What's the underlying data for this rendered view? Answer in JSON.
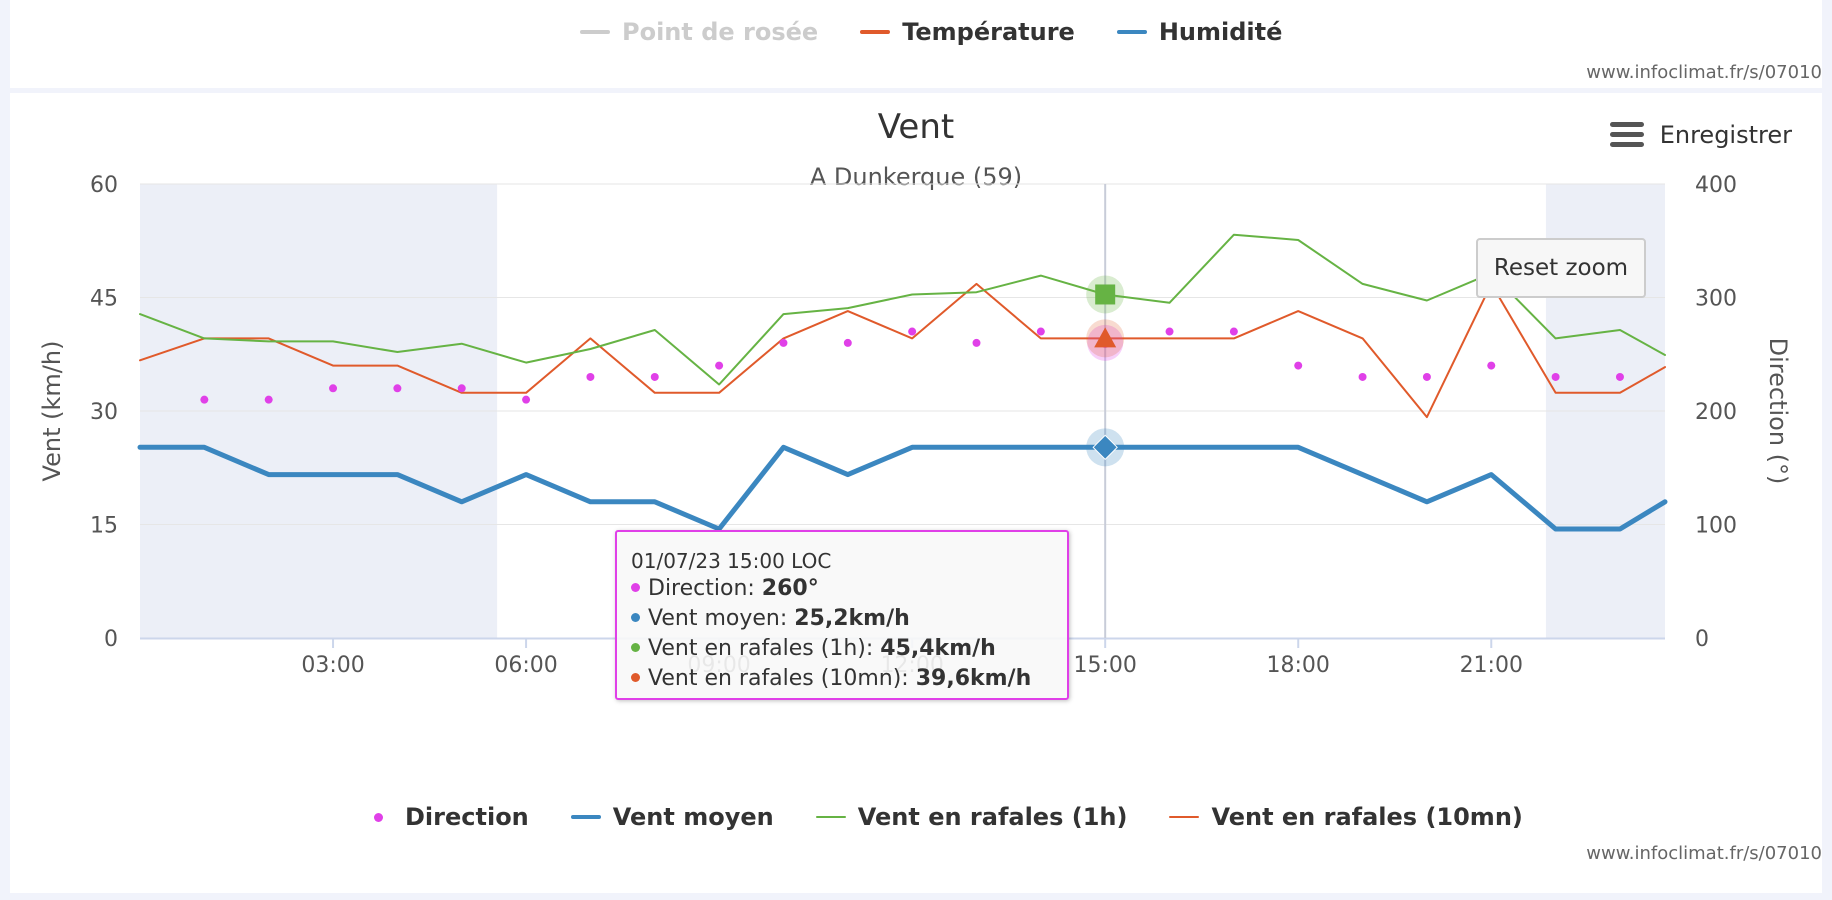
{
  "top_legend": {
    "items": [
      {
        "label": "Point de rosée",
        "color": "#cccccc",
        "enabled": false
      },
      {
        "label": "Température",
        "color": "#e05a2b",
        "enabled": true
      },
      {
        "label": "Humidité",
        "color": "#3b87c0",
        "enabled": true
      }
    ],
    "credit": "www.infoclimat.fr/s/07010"
  },
  "export": {
    "label": "Enregistrer",
    "icon": "hamburger-menu-icon"
  },
  "reset_zoom_label": "Reset zoom",
  "footer_credit": "www.infoclimat.fr/s/07010",
  "tooltip": {
    "header": "01/07/23 15:00 LOC",
    "rows": [
      {
        "label": "Direction: ",
        "value": "260°",
        "color": "#e040e8"
      },
      {
        "label": "Vent moyen: ",
        "value": "25,2km/h",
        "color": "#3b87c0"
      },
      {
        "label": "Vent en rafales (1h): ",
        "value": "45,4km/h",
        "color": "#66b344"
      },
      {
        "label": "Vent en rafales (10mn): ",
        "value": "39,6km/h",
        "color": "#e05a2b"
      }
    ]
  },
  "chart_data": {
    "type": "line",
    "title": "Vent",
    "subtitle": "A Dunkerque (59)",
    "ylabel": "Vent (km/h)",
    "ylabel_right": "Direction (°)",
    "ylim": [
      0,
      60
    ],
    "y_ticks": [
      "0",
      "15",
      "30",
      "45",
      "60"
    ],
    "ylim_right": [
      0,
      400
    ],
    "y_ticks_right": [
      "0",
      "100",
      "200",
      "300",
      "400"
    ],
    "x_unit": "hour",
    "xlim": [
      0,
      23.7
    ],
    "x_ticks": [
      {
        "value": 3,
        "label": "03:00"
      },
      {
        "value": 6,
        "label": "06:00"
      },
      {
        "value": 9,
        "label": "09:00"
      },
      {
        "value": 12,
        "label": "12:00"
      },
      {
        "value": 15,
        "label": "15:00"
      },
      {
        "value": 18,
        "label": "18:00"
      },
      {
        "value": 21,
        "label": "21:00"
      }
    ],
    "night_bands": [
      [
        0,
        5.55
      ],
      [
        21.85,
        23.7
      ]
    ],
    "crosshair_x": 15,
    "grid": true,
    "legend_position": "bottom",
    "series": [
      {
        "name": "Direction",
        "kind": "scatter",
        "axis": "right",
        "color": "#e040e8",
        "x": [
          1,
          2,
          3,
          4,
          5,
          6,
          7,
          8,
          9,
          10,
          11,
          12,
          13,
          14,
          15,
          16,
          17,
          18,
          19,
          20,
          21,
          22,
          23
        ],
        "values": [
          210,
          210,
          220,
          220,
          220,
          210,
          230,
          230,
          240,
          260,
          260,
          270,
          260,
          270,
          260,
          270,
          270,
          240,
          230,
          230,
          240,
          230,
          230
        ]
      },
      {
        "name": "Vent moyen",
        "kind": "line",
        "axis": "left",
        "color": "#3b87c0",
        "width": 5,
        "x": [
          0,
          1,
          2,
          3,
          4,
          5,
          6,
          7,
          8,
          9,
          10,
          11,
          12,
          13,
          14,
          15,
          16,
          17,
          18,
          19,
          20,
          21,
          22,
          23,
          23.7
        ],
        "values": [
          25.2,
          25.2,
          21.6,
          21.6,
          21.6,
          18,
          21.6,
          18,
          18,
          14.4,
          25.2,
          21.6,
          25.2,
          25.2,
          25.2,
          25.2,
          25.2,
          25.2,
          25.2,
          21.6,
          18,
          21.6,
          14.4,
          14.4,
          18
        ]
      },
      {
        "name": "Vent en rafales (1h)",
        "kind": "line",
        "axis": "left",
        "color": "#66b344",
        "width": 2,
        "x": [
          0,
          1,
          2,
          3,
          4,
          5,
          6,
          7,
          8,
          9,
          10,
          11,
          12,
          13,
          14,
          15,
          16,
          17,
          18,
          19,
          20,
          21,
          22,
          23,
          23.7
        ],
        "values": [
          42.8,
          39.6,
          39.2,
          39.2,
          37.8,
          38.9,
          36.4,
          38.2,
          40.7,
          33.5,
          42.8,
          43.6,
          45.4,
          45.7,
          47.9,
          45.4,
          44.3,
          53.3,
          52.6,
          46.8,
          44.6,
          48.2,
          39.6,
          40.7,
          37.4
        ]
      },
      {
        "name": "Vent en rafales (10mn)",
        "kind": "line",
        "axis": "left",
        "color": "#e05a2b",
        "width": 2,
        "x": [
          0,
          1,
          2,
          3,
          4,
          5,
          6,
          7,
          8,
          9,
          10,
          11,
          12,
          13,
          14,
          15,
          16,
          17,
          18,
          19,
          20,
          21,
          22,
          23,
          23.7
        ],
        "values": [
          36.7,
          39.6,
          39.6,
          36,
          36,
          32.4,
          32.4,
          39.6,
          32.4,
          32.4,
          39.6,
          43.2,
          39.6,
          46.8,
          39.6,
          39.6,
          39.6,
          39.6,
          43.2,
          39.6,
          29.2,
          46.8,
          32.4,
          32.4,
          35.8
        ]
      }
    ]
  }
}
